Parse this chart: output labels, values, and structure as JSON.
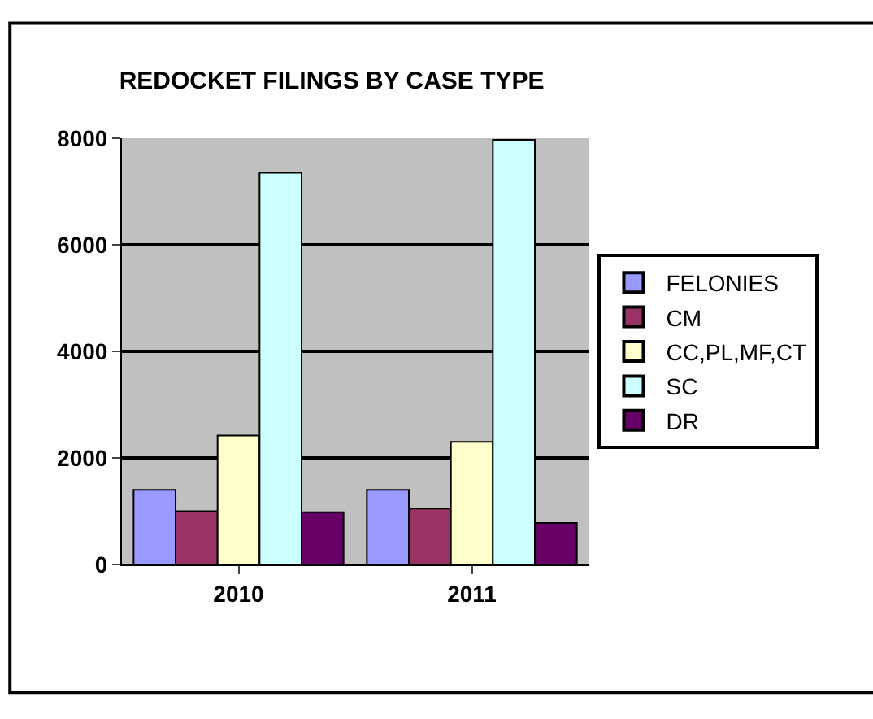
{
  "chart_data": {
    "type": "bar",
    "title": "REDOCKET FILINGS BY CASE TYPE",
    "categories": [
      "2010",
      "2011"
    ],
    "series": [
      {
        "name": "FELONIES",
        "color": "#9999ff",
        "values": [
          1400,
          1400
        ]
      },
      {
        "name": "CM",
        "color": "#993366",
        "values": [
          1000,
          1050
        ]
      },
      {
        "name": "CC,PL,MF,CT",
        "color": "#ffffcc",
        "values": [
          2420,
          2300
        ]
      },
      {
        "name": "SC",
        "color": "#ccffff",
        "values": [
          7350,
          7970
        ]
      },
      {
        "name": "DR",
        "color": "#660066",
        "values": [
          980,
          780
        ]
      }
    ],
    "ylim": [
      0,
      8000
    ],
    "yticks": [
      0,
      2000,
      4000,
      6000,
      8000
    ],
    "grid": "y",
    "legend": "right"
  }
}
